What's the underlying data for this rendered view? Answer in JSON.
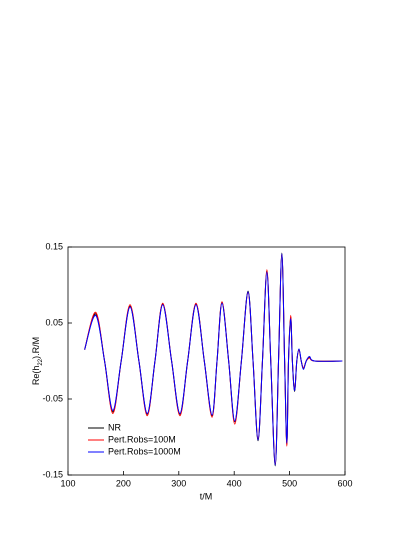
{
  "chart_data": {
    "type": "line",
    "xlabel": "t/M",
    "ylabel_parts": [
      "Re(h",
      "22",
      ").R/M"
    ],
    "x": [
      130,
      150,
      166,
      181,
      196,
      212,
      228,
      243,
      257,
      271,
      287,
      302,
      316,
      331,
      346,
      360,
      369,
      378,
      390,
      401,
      413,
      425,
      434,
      443,
      451,
      459,
      466,
      474,
      480,
      486,
      491,
      495,
      498,
      502,
      505,
      509,
      513,
      517,
      521,
      525,
      530,
      536,
      545,
      595
    ],
    "series": [
      {
        "name": "NR",
        "color": "#000000",
        "values": [
          0.015,
          0.062,
          0,
          -0.067,
          0,
          0.072,
          0,
          -0.07,
          0,
          0.075,
          0,
          -0.07,
          0,
          0.075,
          0,
          -0.072,
          0,
          0.077,
          0,
          -0.08,
          0,
          0.092,
          0,
          -0.105,
          0,
          0.118,
          0,
          -0.138,
          0,
          0.142,
          0,
          -0.11,
          0,
          0.058,
          0,
          -0.04,
          0,
          0.015,
          0,
          -0.01,
          0,
          0.005,
          0,
          0
        ]
      },
      {
        "name": "Pert.Robs=100M",
        "color": "#ff0000",
        "values": [
          0.015,
          0.064,
          0,
          -0.069,
          0,
          0.074,
          0,
          -0.072,
          0,
          0.076,
          0,
          -0.072,
          0,
          0.076,
          0,
          -0.074,
          0,
          0.078,
          0,
          -0.083,
          0,
          0.09,
          0,
          -0.102,
          0,
          0.12,
          0,
          -0.135,
          0,
          0.14,
          0,
          -0.112,
          0,
          0.06,
          0,
          -0.038,
          0,
          0.014,
          0,
          -0.009,
          0,
          0.004,
          0,
          0
        ]
      },
      {
        "name": "Pert.Robs=1000M",
        "color": "#0000ff",
        "values": [
          0.015,
          0.06,
          0,
          -0.065,
          0,
          0.071,
          0,
          -0.069,
          0,
          0.074,
          0,
          -0.069,
          0,
          0.074,
          0,
          -0.071,
          0,
          0.076,
          0,
          -0.079,
          0,
          0.091,
          0,
          -0.104,
          0,
          0.117,
          0,
          -0.137,
          0,
          0.141,
          0,
          -0.108,
          0,
          0.056,
          0,
          -0.039,
          0,
          0.016,
          0,
          -0.011,
          0,
          0.006,
          0,
          0
        ]
      }
    ],
    "xlim": [
      100,
      600
    ],
    "xticks": [
      100,
      200,
      300,
      400,
      500,
      600
    ],
    "ylim": [
      -0.15,
      0.15
    ],
    "yticks": [
      -0.15,
      -0.05,
      0.05,
      0.15
    ],
    "grid": false,
    "legend": "lower left"
  }
}
